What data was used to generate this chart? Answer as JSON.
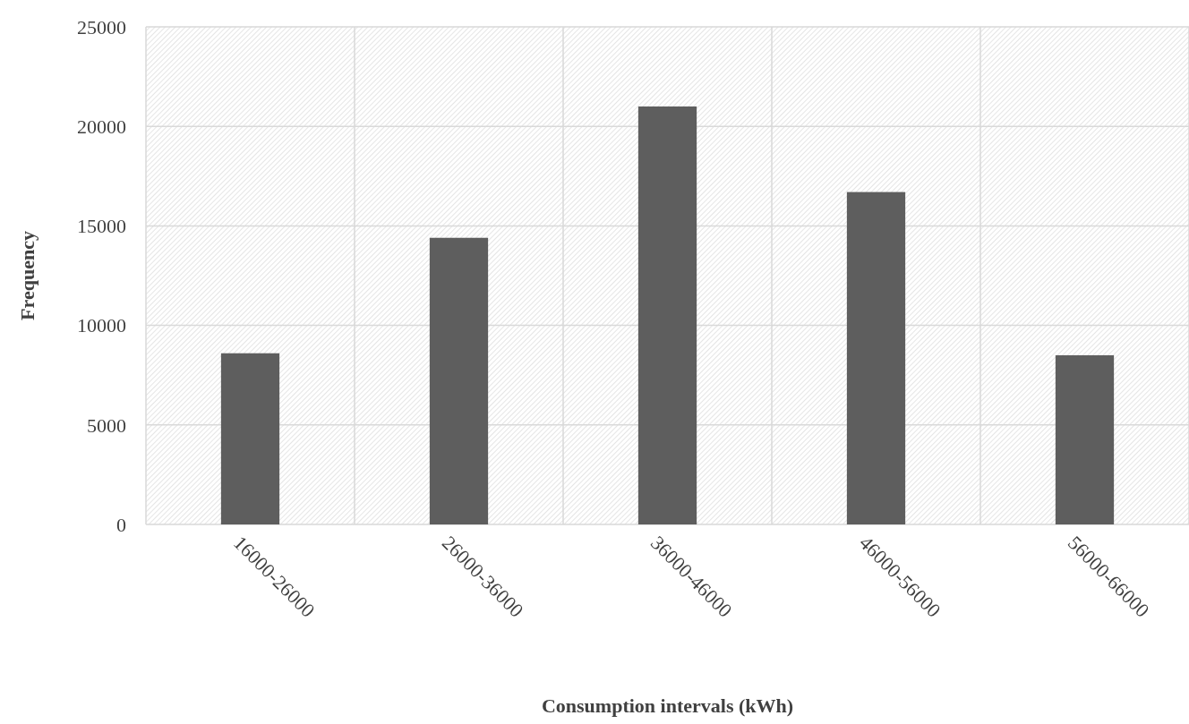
{
  "chart_data": {
    "type": "bar",
    "xlabel": "Consumption intervals (kWh)",
    "ylabel": "Frequency",
    "categories": [
      "16000-26000",
      "26000-36000",
      "36000-46000",
      "46000-56000",
      "56000-66000"
    ],
    "values": [
      8600,
      14400,
      21000,
      16700,
      8500
    ],
    "color": "#5e5e5e",
    "ylim": [
      0,
      25000
    ],
    "yticks": [
      0,
      5000,
      10000,
      15000,
      20000,
      25000
    ],
    "grid": true
  }
}
